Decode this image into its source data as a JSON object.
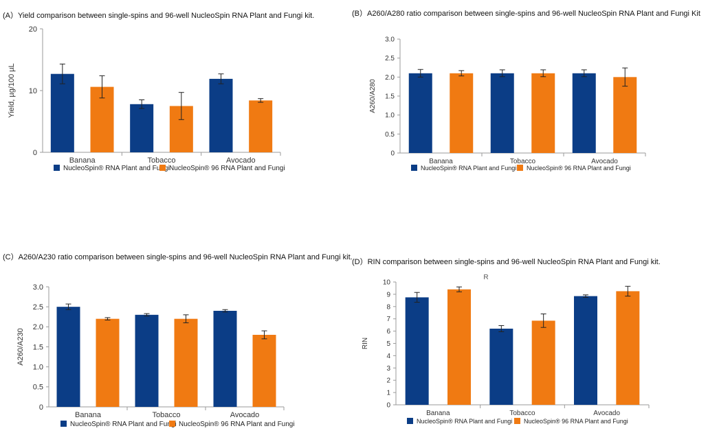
{
  "colors": {
    "single": "#0b3d86",
    "well96": "#f07a12",
    "axis": "#888888",
    "text": "#222222"
  },
  "chart_data": [
    {
      "id": "A",
      "type": "bar",
      "title": "(A）Yield comparison between single-spins and 96-well NucleoSpin RNA Plant and Fungi kit.",
      "categories": [
        "Banana",
        "Tobacco",
        "Avocado"
      ],
      "ylabel": "Yield, µg/100 µL",
      "xlabel": "",
      "ylim": [
        0,
        20
      ],
      "yticks": [
        0,
        10,
        20
      ],
      "legend_position": "bottom",
      "series": [
        {
          "name": "NucleoSpin® RNA Plant and Fungi",
          "values": [
            12.7,
            7.8,
            11.9
          ],
          "errors": [
            1.6,
            0.7,
            0.8
          ]
        },
        {
          "name": "NucleoSpin® 96 RNA Plant and Fungi",
          "values": [
            10.6,
            7.5,
            8.4
          ],
          "errors": [
            1.8,
            2.2,
            0.3
          ]
        }
      ]
    },
    {
      "id": "B",
      "type": "bar",
      "title": "(B）A260/A280 ratio comparison between single-spins and 96-well NucleoSpin RNA Plant and Fungi Kit",
      "categories": [
        "Banana",
        "Tobacco",
        "Avocado"
      ],
      "ylabel": "A260/A280",
      "xlabel": "",
      "ylim": [
        0,
        3.0
      ],
      "yticks": [
        "0",
        "0.5",
        "1.0",
        "1.5",
        "2.0",
        "2.5",
        "3.0"
      ],
      "legend_position": "bottom",
      "series": [
        {
          "name": "NucleoSpin® RNA Plant and Fungi",
          "values": [
            2.1,
            2.1,
            2.1
          ],
          "errors": [
            0.1,
            0.09,
            0.09
          ]
        },
        {
          "name": "NucleoSpin® 96 RNA Plant and Fungi",
          "values": [
            2.1,
            2.1,
            2.0
          ],
          "errors": [
            0.07,
            0.09,
            0.24
          ]
        }
      ]
    },
    {
      "id": "C",
      "type": "bar",
      "title": "(C）A260/A230 ratio comparison between single-spins and 96-well NucleoSpin RNA Plant and Fungi kit.",
      "categories": [
        "Banana",
        "Tobacco",
        "Avocado"
      ],
      "ylabel": "A260/A230",
      "xlabel": "",
      "ylim": [
        0,
        3.0
      ],
      "yticks": [
        "0",
        "0.5",
        "1.0",
        "1.5",
        "2.0",
        "2.5",
        "3.0"
      ],
      "legend_position": "bottom",
      "series": [
        {
          "name": "NucleoSpin® RNA Plant and Fungi",
          "values": [
            2.5,
            2.3,
            2.4
          ],
          "errors": [
            0.07,
            0.03,
            0.03
          ]
        },
        {
          "name": "NucleoSpin® 96 RNA Plant and Fungi",
          "values": [
            2.2,
            2.2,
            1.8
          ],
          "errors": [
            0.03,
            0.1,
            0.1
          ]
        }
      ]
    },
    {
      "id": "D",
      "type": "bar",
      "title": "(D）RIN comparison between single-spins and 96-well NucleoSpin RNA Plant and Fungi kit.",
      "subtitle": "R",
      "categories": [
        "Banana",
        "Tobacco",
        "Avocado"
      ],
      "ylabel": "RIN",
      "xlabel": "",
      "ylim": [
        0,
        10
      ],
      "yticks": [
        "0",
        "1",
        "2",
        "3",
        "4",
        "5",
        "6",
        "7",
        "8",
        "9",
        "10"
      ],
      "legend_position": "bottom",
      "series": [
        {
          "name": "NucleoSpin® RNA Plant and Fungi",
          "values": [
            8.75,
            6.2,
            8.85
          ],
          "errors": [
            0.4,
            0.25,
            0.1
          ]
        },
        {
          "name": "NucleoSpin® 96 RNA Plant and Fungi",
          "values": [
            9.4,
            6.85,
            9.25
          ],
          "errors": [
            0.2,
            0.55,
            0.4
          ]
        }
      ]
    }
  ]
}
